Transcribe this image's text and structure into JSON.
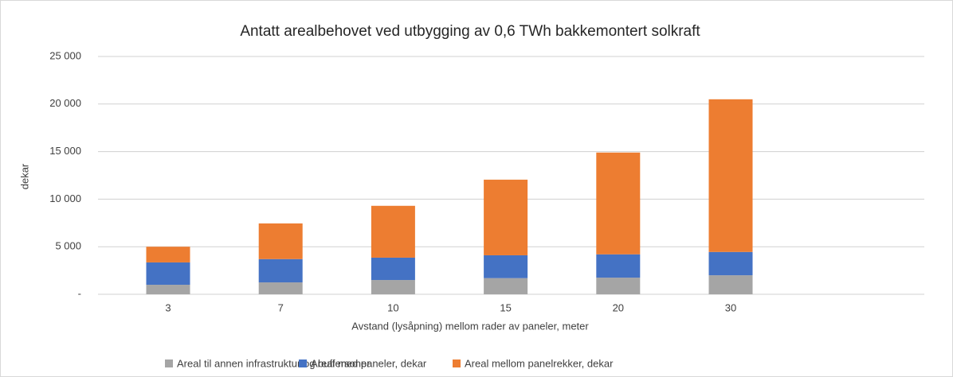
{
  "chart_data": {
    "type": "stacked_bar",
    "title": "Antatt arealbehovet ved utbygging av 0,6 TWh bakkemontert solkraft",
    "x_label": "Avstand (lysåpning) mellom rader av paneler, meter",
    "y_label": "dekar",
    "categories": [
      "3",
      "7",
      "10",
      "15",
      "20",
      "30"
    ],
    "series": [
      {
        "name": "Areal til annen infrastruktur og buffersoner",
        "color": "#a5a5a5",
        "values": [
          1000,
          1250,
          1500,
          1700,
          1750,
          2000
        ]
      },
      {
        "name": "Areal med paneler, dekar",
        "color": "#4472c4",
        "values": [
          2350,
          2450,
          2350,
          2400,
          2450,
          2450
        ]
      },
      {
        "name": "Areal mellom panelrekker, dekar",
        "color": "#ed7d31",
        "values": [
          1650,
          3750,
          5450,
          7950,
          10700,
          16050
        ]
      }
    ],
    "ylim": [
      0,
      25000
    ],
    "yticks": [
      {
        "value": 0,
        "label": "-"
      },
      {
        "value": 5000,
        "label": "5 000"
      },
      {
        "value": 10000,
        "label": "10 000"
      },
      {
        "value": 15000,
        "label": "15 000"
      },
      {
        "value": 20000,
        "label": "20 000"
      },
      {
        "value": 25000,
        "label": "25 000"
      }
    ],
    "grid": true,
    "legend": "bottom"
  }
}
